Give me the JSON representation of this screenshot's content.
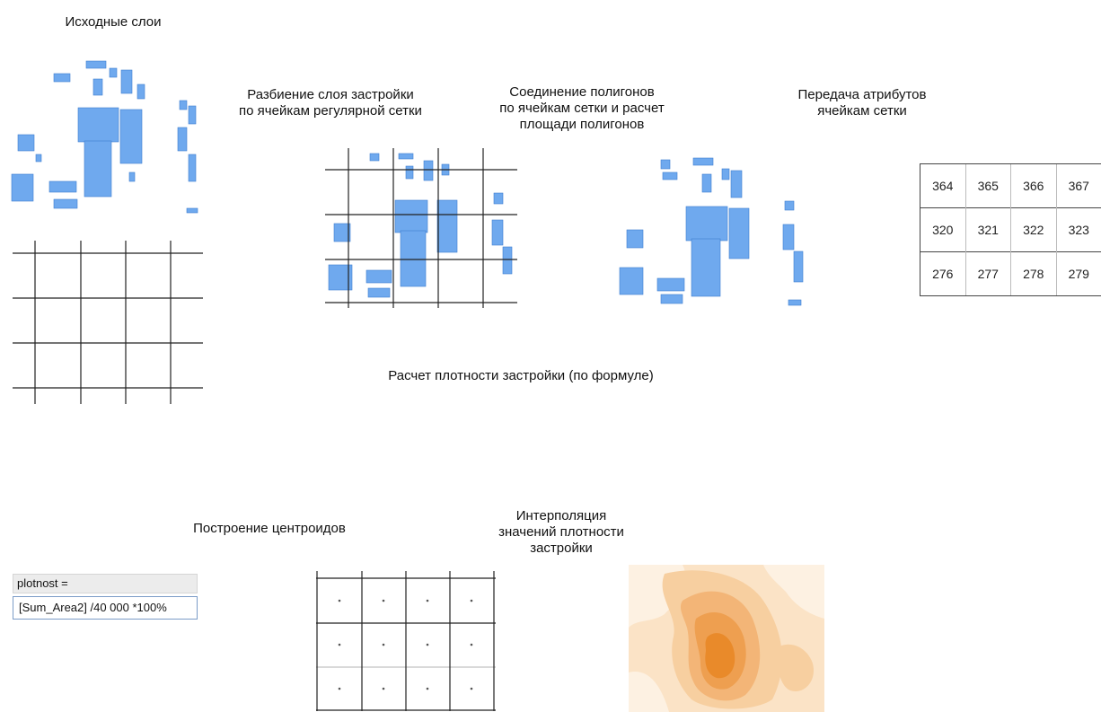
{
  "labels": {
    "source_layers": "Исходные слои",
    "split_layer": "Разбиение слоя застройки\nпо ячейкам регулярной сетки",
    "join_polygons": "Соединение полигонов\nпо ячейкам сетки и расчет\nплощади полигонов",
    "transfer_attributes": "Передача атрибутов\nячейкам сетки",
    "density_calc": "Расчет плотности застройки (по формуле)",
    "centroids": "Построение центроидов",
    "interpolation": "Интерполяция\nзначений плотности\nзастройки"
  },
  "attribute_table": {
    "rows": [
      [
        "364",
        "365",
        "366",
        "367"
      ],
      [
        "320",
        "321",
        "322",
        "323"
      ],
      [
        "276",
        "277",
        "278",
        "279"
      ]
    ]
  },
  "formula": {
    "field_name": "plotnost =",
    "expression": "[Sum_Area2] /40 000 *100%"
  },
  "colors": {
    "building_fill": "#6fa9ee",
    "density_low": "#fdf1e2",
    "density_high": "#e98a2a"
  }
}
